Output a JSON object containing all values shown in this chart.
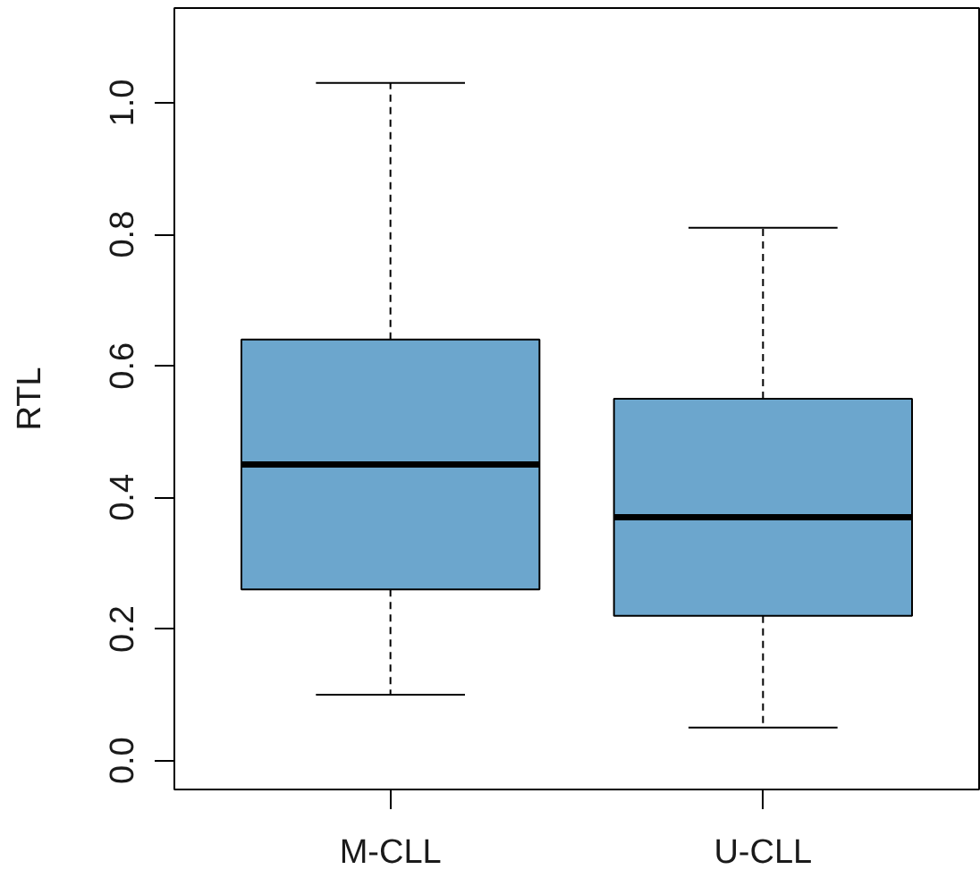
{
  "chart_data": {
    "type": "box",
    "ylabel": "RTL",
    "categories": [
      "M-CLL",
      "U-CLL"
    ],
    "series": [
      {
        "color": "#6ca6cd",
        "boxes": [
          {
            "low": 0.1,
            "q1": 0.26,
            "median": 0.45,
            "q3": 0.64,
            "high": 1.03
          },
          {
            "low": 0.05,
            "q1": 0.22,
            "median": 0.37,
            "q3": 0.55,
            "high": 0.81
          }
        ]
      }
    ],
    "ylim": [
      -0.044,
      1.144
    ],
    "yticks": [
      {
        "value": 0,
        "label": "0.0"
      },
      0.2,
      0.4,
      0.6,
      0.8,
      {
        "value": 1,
        "label": "1.0"
      }
    ]
  }
}
